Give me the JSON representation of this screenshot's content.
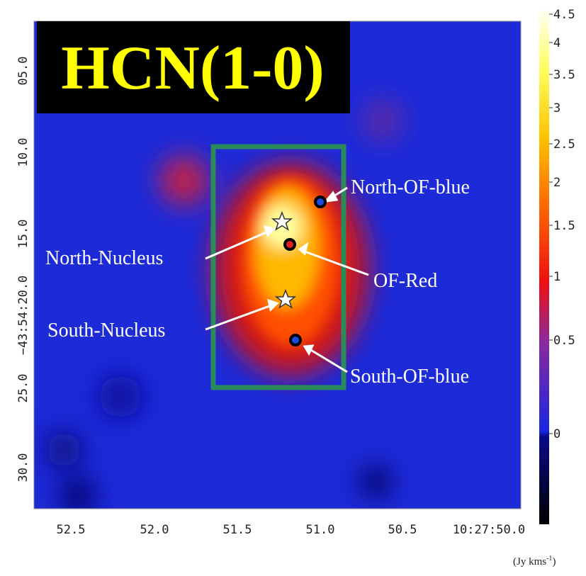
{
  "title": "HCN(1-0)",
  "labels": {
    "north_of_blue": "North-OF-blue",
    "north_nucleus": "North-Nucleus",
    "of_red": "OF-Red",
    "south_nucleus": "South-Nucleus",
    "south_of_blue": "South-OF-blue"
  },
  "y_axis": {
    "ticks": [
      "05.0",
      "10.0",
      "15.0",
      "−43:54:20.0",
      "25.0",
      "30.0"
    ]
  },
  "x_axis": {
    "ticks": [
      "52.5",
      "52.0",
      "51.5",
      "51.0",
      "50.5",
      "10:27:50.0"
    ]
  },
  "colorbar": {
    "ticks": [
      "4.5",
      "4",
      "3.5",
      "3",
      "2.5",
      "2",
      "1.5",
      "1",
      "0.5",
      "0"
    ],
    "unit": "(Jy kms",
    "unit_sup": "-1",
    "unit_end": ")"
  }
}
